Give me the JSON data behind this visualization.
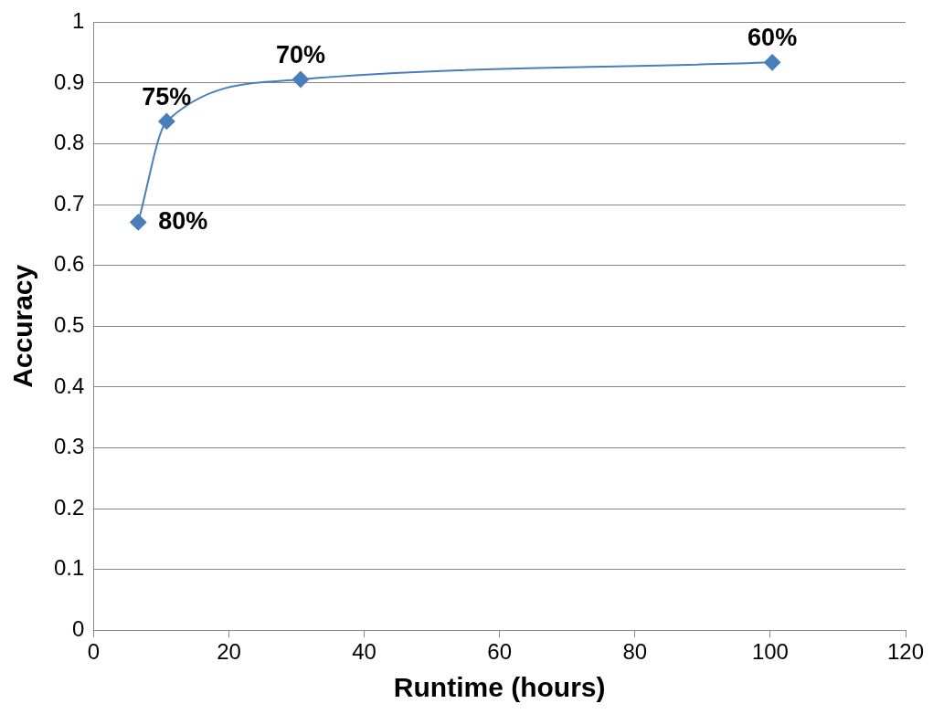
{
  "chart_data": {
    "type": "scatter",
    "xlabel": "Runtime (hours)",
    "ylabel": "Accuracy",
    "series": [
      {
        "type": "line",
        "color": "#4a7ebb",
        "x": [
          6.6,
          10.8,
          30.6,
          100.3
        ],
        "values": [
          0.671,
          0.837,
          0.906,
          0.934
        ]
      }
    ],
    "annotations": [
      {
        "text": "80%",
        "x": 6.6,
        "y": 0.671
      },
      {
        "text": "75%",
        "x": 10.8,
        "y": 0.837
      },
      {
        "text": "70%",
        "x": 30.6,
        "y": 0.906
      },
      {
        "text": "60%",
        "x": 100.3,
        "y": 0.934
      }
    ],
    "xlim": [
      0,
      120
    ],
    "xticks": [
      0,
      20,
      40,
      60,
      80,
      100,
      120
    ],
    "ylim": [
      0,
      1
    ],
    "yticks": [
      0,
      0.1,
      0.2,
      0.3,
      0.4,
      0.5,
      0.6,
      0.7,
      0.8,
      0.9,
      1
    ],
    "grid": "y",
    "legend": false,
    "marker": "diamond",
    "line_style": "solid"
  }
}
